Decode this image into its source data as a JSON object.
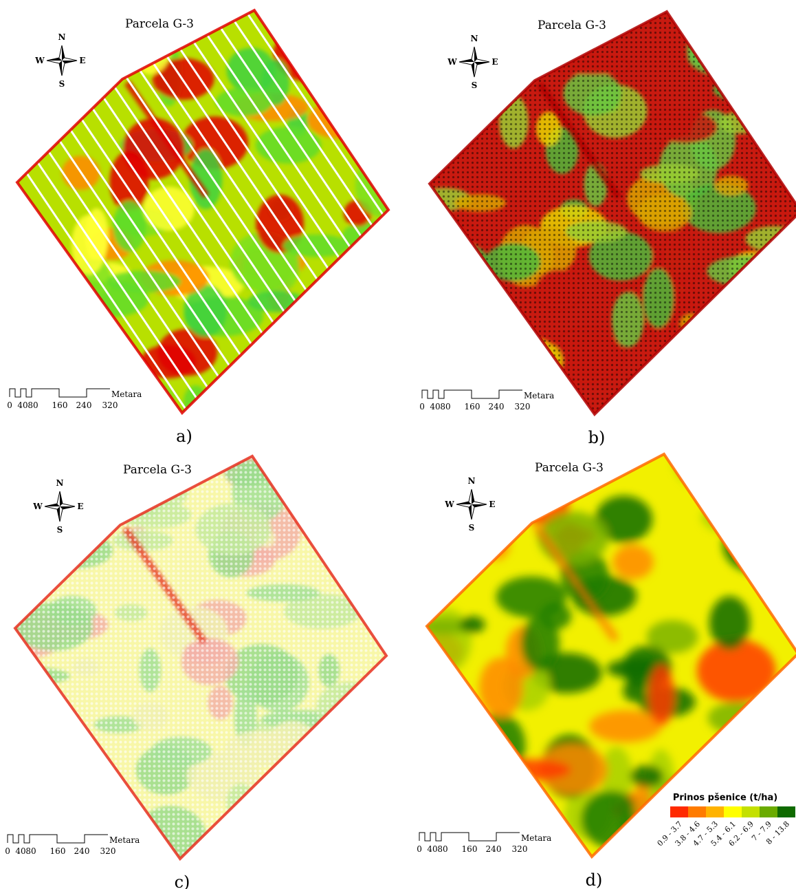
{
  "panels": [
    {
      "title": "Parcela G-3",
      "label": "a)"
    },
    {
      "title": "Parcela G-3",
      "label": "b)"
    },
    {
      "title": "Parcela G-3",
      "label": "c)"
    },
    {
      "title": "Parcela G-3",
      "label": "d)"
    }
  ],
  "compass": {
    "n": "N",
    "s": "S",
    "w": "W",
    "e": "E"
  },
  "scale": {
    "ticks": [
      "0",
      "40",
      "80",
      "160",
      "240",
      "320"
    ],
    "unit": "Metara"
  },
  "legend": {
    "title": "Prinos pšenice (t/ha)",
    "classes": [
      {
        "label": "0.9 - 3.7",
        "color": "#ff2a00"
      },
      {
        "label": "3.8 - 4.6",
        "color": "#ff7b00"
      },
      {
        "label": "4.7 - 5.3",
        "color": "#ffb300"
      },
      {
        "label": "5.4 - 6.1",
        "color": "#ffff00"
      },
      {
        "label": "6.2 - 6.9",
        "color": "#c4e000"
      },
      {
        "label": "7 - 7.9",
        "color": "#6aab00"
      },
      {
        "label": "8 - 13.8",
        "color": "#0f6a00"
      }
    ]
  }
}
